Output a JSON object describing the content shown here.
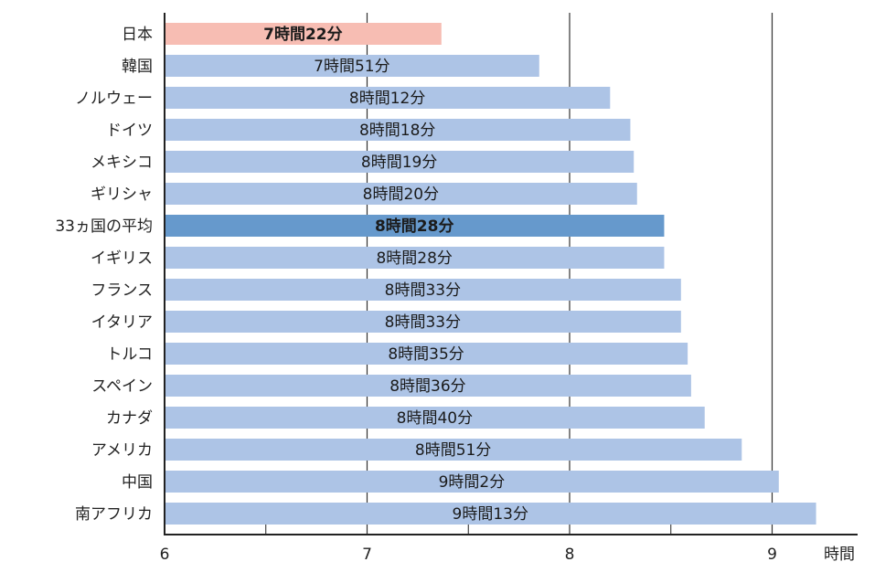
{
  "chart_data": {
    "type": "bar",
    "orientation": "horizontal",
    "categories": [
      "日本",
      "韓国",
      "ノルウェー",
      "ドイツ",
      "メキシコ",
      "ギリシャ",
      "33ヵ国の平均",
      "イギリス",
      "フランス",
      "イタリア",
      "トルコ",
      "スペイン",
      "カナダ",
      "アメリカ",
      "中国",
      "南アフリカ"
    ],
    "values": [
      7.367,
      7.85,
      8.2,
      8.3,
      8.317,
      8.333,
      8.467,
      8.467,
      8.55,
      8.55,
      8.583,
      8.6,
      8.667,
      8.85,
      9.033,
      9.217
    ],
    "value_labels": [
      "7時間22分",
      "7時間51分",
      "8時間12分",
      "8時間18分",
      "8時間19分",
      "8時間20分",
      "8時間28分",
      "8時間28分",
      "8時間33分",
      "8時間33分",
      "8時間35分",
      "8時間36分",
      "8時間40分",
      "8時間51分",
      "9時間2分",
      "9時間13分"
    ],
    "highlight": {
      "0": "#f7bdb3",
      "6": "#6699cc"
    },
    "bold_labels": [
      0,
      6
    ],
    "label_colors": {
      "6": "#ffffff"
    },
    "bar_color": "#adc4e6",
    "xlim": [
      6,
      9.4
    ],
    "ticks": [
      6,
      7,
      8,
      9
    ],
    "minor_gridlines": [
      6.5,
      7.5,
      8.5
    ],
    "xlabel": "時間",
    "grid": true
  }
}
